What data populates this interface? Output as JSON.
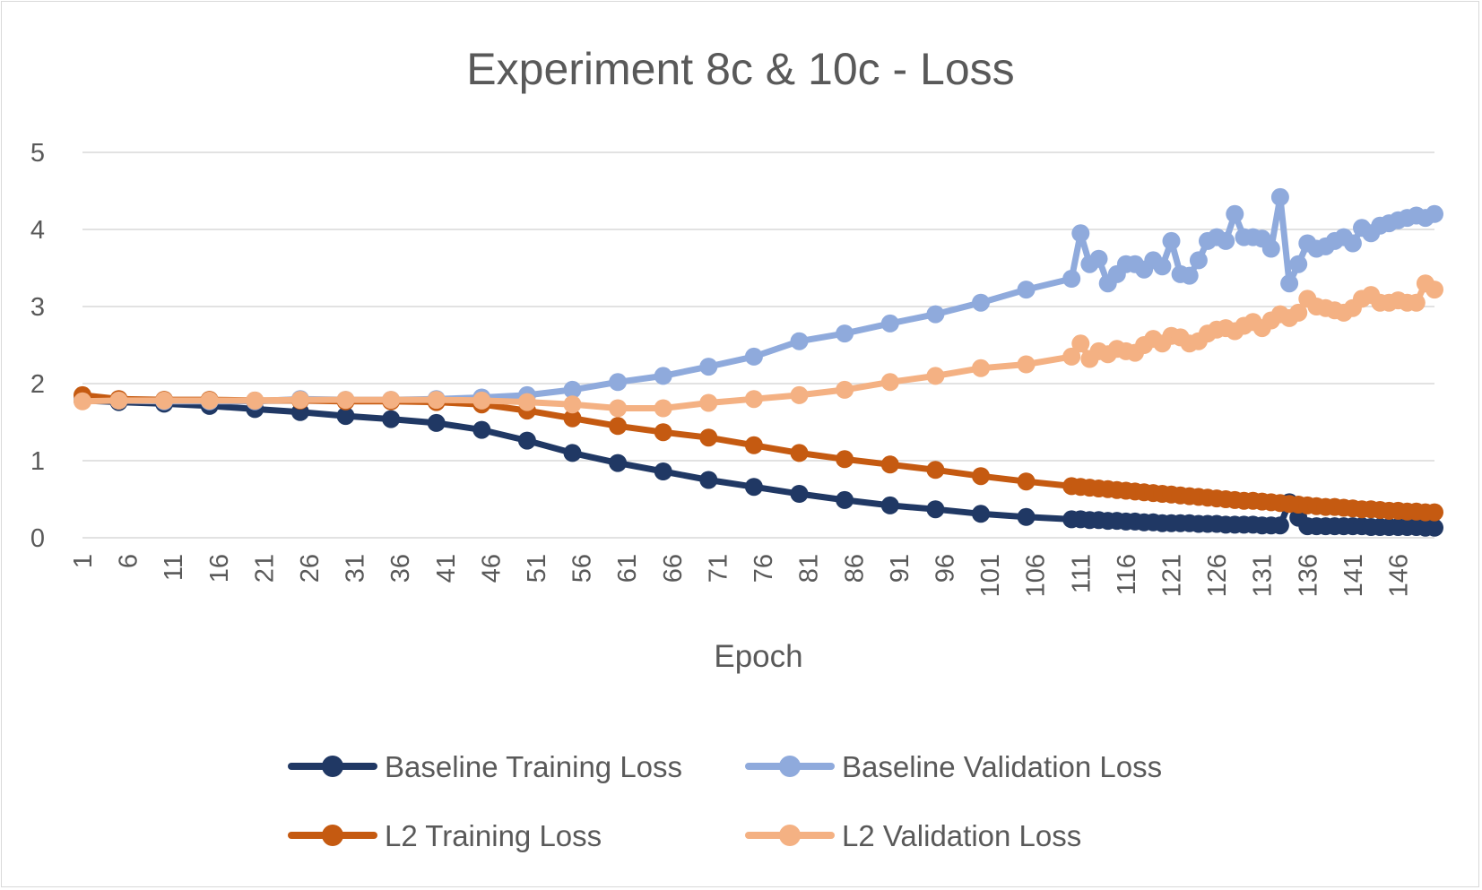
{
  "chart_data": {
    "type": "line",
    "title": "Experiment 8c & 10c - Loss",
    "xlabel": "Epoch",
    "ylabel": "",
    "ylim": [
      0,
      5
    ],
    "yticks": [
      "0",
      "1",
      "2",
      "3",
      "4",
      "5"
    ],
    "xlim": [
      1,
      150
    ],
    "xticks": [
      "1",
      "6",
      "11",
      "16",
      "21",
      "26",
      "31",
      "36",
      "41",
      "46",
      "51",
      "56",
      "61",
      "66",
      "71",
      "76",
      "81",
      "86",
      "91",
      "96",
      "101",
      "106",
      "111",
      "116",
      "121",
      "126",
      "131",
      "136",
      "141",
      "146"
    ],
    "grid": "horizontal",
    "legend": "bottom",
    "x": [
      1,
      5,
      10,
      15,
      20,
      25,
      30,
      35,
      40,
      45,
      50,
      55,
      60,
      65,
      70,
      75,
      80,
      85,
      90,
      95,
      100,
      105,
      110,
      111,
      112,
      113,
      114,
      115,
      116,
      117,
      118,
      119,
      120,
      121,
      122,
      123,
      124,
      125,
      126,
      127,
      128,
      129,
      130,
      131,
      132,
      133,
      134,
      135,
      136,
      137,
      138,
      139,
      140,
      141,
      142,
      143,
      144,
      145,
      146,
      147,
      148,
      149,
      150
    ],
    "series": [
      {
        "name": "Baseline Training Loss",
        "color": "#203864",
        "values": [
          1.78,
          1.76,
          1.74,
          1.71,
          1.67,
          1.63,
          1.58,
          1.54,
          1.49,
          1.4,
          1.26,
          1.1,
          0.97,
          0.86,
          0.75,
          0.66,
          0.57,
          0.49,
          0.42,
          0.37,
          0.31,
          0.27,
          0.24,
          0.24,
          0.23,
          0.23,
          0.22,
          0.22,
          0.21,
          0.21,
          0.2,
          0.2,
          0.19,
          0.19,
          0.19,
          0.19,
          0.18,
          0.18,
          0.18,
          0.17,
          0.17,
          0.17,
          0.17,
          0.16,
          0.16,
          0.16,
          0.46,
          0.26,
          0.15,
          0.15,
          0.15,
          0.15,
          0.15,
          0.15,
          0.15,
          0.14,
          0.14,
          0.14,
          0.14,
          0.14,
          0.14,
          0.13,
          0.13
        ]
      },
      {
        "name": "Baseline Validation Loss",
        "color": "#8faadc",
        "values": [
          1.8,
          1.78,
          1.77,
          1.77,
          1.77,
          1.8,
          1.79,
          1.79,
          1.8,
          1.82,
          1.85,
          1.92,
          2.02,
          2.1,
          2.22,
          2.35,
          2.55,
          2.65,
          2.78,
          2.9,
          3.05,
          3.22,
          3.36,
          3.95,
          3.55,
          3.62,
          3.3,
          3.42,
          3.55,
          3.55,
          3.48,
          3.6,
          3.52,
          3.85,
          3.42,
          3.4,
          3.6,
          3.85,
          3.9,
          3.85,
          4.2,
          3.9,
          3.9,
          3.88,
          3.75,
          4.42,
          3.3,
          3.55,
          3.82,
          3.75,
          3.78,
          3.85,
          3.9,
          3.82,
          4.02,
          3.95,
          4.05,
          4.08,
          4.12,
          4.15,
          4.18,
          4.15,
          4.2
        ]
      },
      {
        "name": "L2 Training Loss",
        "color": "#c55a11",
        "values": [
          1.85,
          1.8,
          1.79,
          1.79,
          1.78,
          1.78,
          1.77,
          1.77,
          1.76,
          1.73,
          1.65,
          1.55,
          1.45,
          1.37,
          1.3,
          1.2,
          1.1,
          1.02,
          0.95,
          0.88,
          0.8,
          0.73,
          0.67,
          0.66,
          0.65,
          0.64,
          0.63,
          0.62,
          0.61,
          0.6,
          0.59,
          0.58,
          0.57,
          0.56,
          0.55,
          0.54,
          0.53,
          0.52,
          0.51,
          0.5,
          0.49,
          0.48,
          0.48,
          0.47,
          0.46,
          0.45,
          0.44,
          0.43,
          0.42,
          0.41,
          0.4,
          0.4,
          0.39,
          0.38,
          0.37,
          0.37,
          0.36,
          0.35,
          0.35,
          0.34,
          0.34,
          0.33,
          0.33
        ]
      },
      {
        "name": "L2 Validation Loss",
        "color": "#f4b183",
        "values": [
          1.77,
          1.78,
          1.78,
          1.78,
          1.78,
          1.79,
          1.79,
          1.79,
          1.79,
          1.78,
          1.76,
          1.73,
          1.68,
          1.68,
          1.75,
          1.8,
          1.85,
          1.92,
          2.02,
          2.1,
          2.2,
          2.25,
          2.35,
          2.52,
          2.32,
          2.42,
          2.38,
          2.45,
          2.42,
          2.4,
          2.5,
          2.58,
          2.52,
          2.62,
          2.6,
          2.52,
          2.55,
          2.65,
          2.7,
          2.72,
          2.68,
          2.75,
          2.8,
          2.72,
          2.82,
          2.9,
          2.85,
          2.92,
          3.1,
          3.0,
          2.98,
          2.95,
          2.92,
          2.98,
          3.1,
          3.15,
          3.05,
          3.05,
          3.08,
          3.05,
          3.05,
          3.3,
          3.22
        ]
      }
    ]
  }
}
